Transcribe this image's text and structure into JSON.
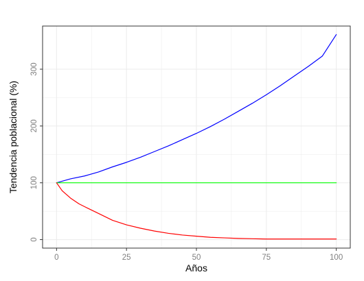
{
  "chart_data": {
    "type": "line",
    "title": "",
    "xlabel": "Años",
    "ylabel": "Tendencia poblacional (%)",
    "xlim": [
      -5,
      105
    ],
    "ylim": [
      -15,
      376
    ],
    "x_ticks": [
      0,
      25,
      50,
      75,
      100
    ],
    "y_ticks": [
      0,
      100,
      200,
      300
    ],
    "x_tick_labels": [
      "0",
      "25",
      "50",
      "75",
      "100"
    ],
    "y_tick_labels": [
      "0",
      "100",
      "200",
      "300"
    ],
    "grid": true,
    "legend": "none",
    "colors": {
      "grid": "#ebebeb",
      "tick_text": "#7f7f7f",
      "frame": "#333333"
    },
    "series": [
      {
        "color": "#0000ff",
        "x": [
          0,
          5,
          10,
          15,
          20,
          25,
          30,
          35,
          40,
          45,
          50,
          55,
          60,
          65,
          70,
          75,
          80,
          85,
          90,
          95,
          100
        ],
        "y": [
          100,
          107,
          112,
          119,
          128,
          136,
          145,
          155,
          165,
          176,
          187,
          199,
          212,
          226,
          240,
          255,
          271,
          288,
          305,
          323,
          361
        ]
      },
      {
        "color": "#00ff00",
        "x": [
          0,
          10,
          20,
          30,
          40,
          50,
          60,
          70,
          80,
          90,
          100
        ],
        "y": [
          100,
          100,
          100,
          100,
          100,
          100,
          100,
          100,
          100,
          100,
          100
        ]
      },
      {
        "color": "#ff0000",
        "x": [
          0,
          2,
          5,
          8,
          10,
          15,
          20,
          25,
          30,
          35,
          40,
          45,
          50,
          55,
          60,
          65,
          70,
          75,
          80,
          90,
          100
        ],
        "y": [
          100,
          86,
          73,
          63,
          58,
          46,
          34,
          26,
          20,
          15,
          11,
          8,
          6,
          4,
          3,
          2,
          1.5,
          1,
          1,
          1,
          1
        ]
      }
    ]
  }
}
